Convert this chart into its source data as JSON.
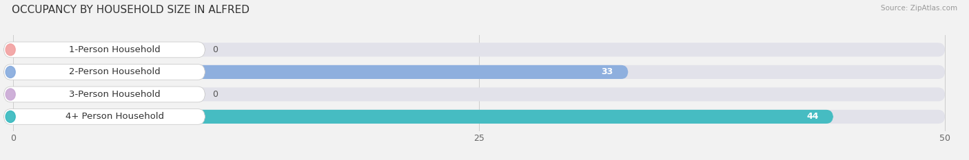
{
  "title": "OCCUPANCY BY HOUSEHOLD SIZE IN ALFRED",
  "source": "Source: ZipAtlas.com",
  "categories": [
    "1-Person Household",
    "2-Person Household",
    "3-Person Household",
    "4+ Person Household"
  ],
  "values": [
    0,
    33,
    0,
    44
  ],
  "bar_colors": [
    "#f2a0a0",
    "#85aadd",
    "#c9a8d4",
    "#35b8be"
  ],
  "value_labels": [
    "0",
    "33",
    "0",
    "44"
  ],
  "xlim_max": 50,
  "xticks": [
    0,
    25,
    50
  ],
  "background_color": "#f2f2f2",
  "track_color": "#e2e2ea",
  "title_fontsize": 11,
  "label_fontsize": 9.5,
  "value_fontsize": 9
}
